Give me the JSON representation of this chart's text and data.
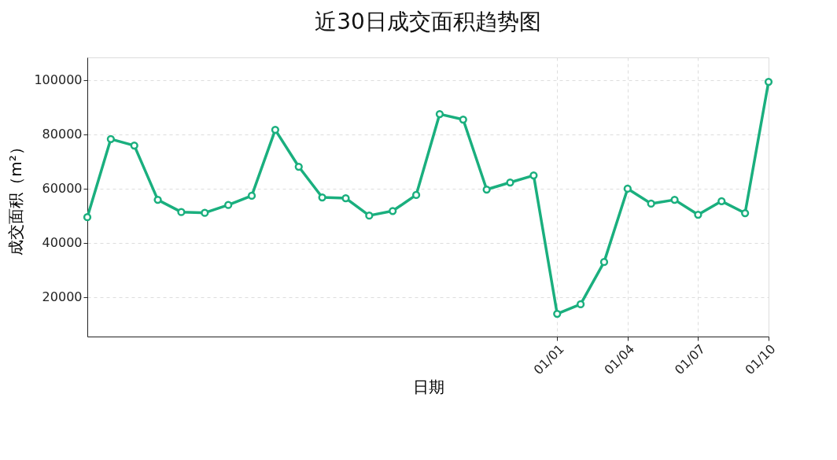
{
  "chart_data": {
    "type": "line",
    "title": "近30日成交面积趋势图",
    "xlabel": "日期",
    "ylabel": "成交面积（m²）",
    "categories": [
      null,
      null,
      null,
      null,
      null,
      null,
      null,
      null,
      null,
      null,
      null,
      null,
      null,
      null,
      null,
      null,
      null,
      null,
      null,
      null,
      "01/01",
      null,
      null,
      "01/04",
      null,
      null,
      "01/07",
      null,
      null,
      "01/10"
    ],
    "series": [
      {
        "color": "#1aaf7e",
        "values": [
          49500,
          78300,
          75900,
          55900,
          51400,
          51100,
          54000,
          57400,
          81700,
          68100,
          56800,
          56500,
          50100,
          51800,
          57700,
          87500,
          85500,
          59700,
          62300,
          64900,
          13900,
          17400,
          33000,
          60000,
          54500,
          55900,
          50400,
          55400,
          51000,
          99400
        ]
      }
    ],
    "ylim": [
      5500,
      108400
    ],
    "yticks": [
      20000,
      40000,
      60000,
      80000,
      100000
    ],
    "grid": true,
    "marker": "circle",
    "line_style": "solid",
    "legend": false
  }
}
